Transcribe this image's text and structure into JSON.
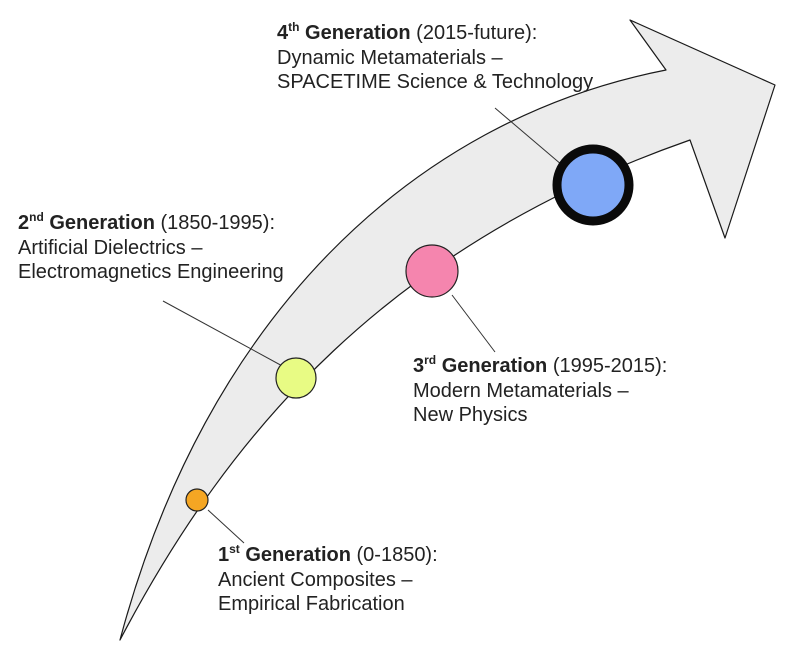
{
  "arrow": {
    "fill": "#ececec",
    "stroke": "#1a1a1a"
  },
  "generations": [
    {
      "id": "gen1",
      "number": "1",
      "suffix": "st",
      "word": "Generation",
      "period": "(0-1850):",
      "line1": "Ancient Composites –",
      "line2": "Empirical Fabrication",
      "color": "#f5a623",
      "ring": false
    },
    {
      "id": "gen2",
      "number": "2",
      "suffix": "nd",
      "word": "Generation",
      "period": "(1850-1995):",
      "line1": "Artificial Dielectrics –",
      "line2": "Electromagnetics Engineering",
      "color": "#e8fb84",
      "ring": false
    },
    {
      "id": "gen3",
      "number": "3",
      "suffix": "rd",
      "word": "Generation",
      "period": "(1995-2015):",
      "line1": "Modern Metamaterials –",
      "line2": "New Physics",
      "color": "#f585ae",
      "ring": false
    },
    {
      "id": "gen4",
      "number": "4",
      "suffix": "th",
      "word": "Generation",
      "period": "(2015-future):",
      "line1": "Dynamic Metamaterials –",
      "line2": "SPACETIME Science & Technology",
      "color": "#7fa8f7",
      "ring": true
    }
  ]
}
